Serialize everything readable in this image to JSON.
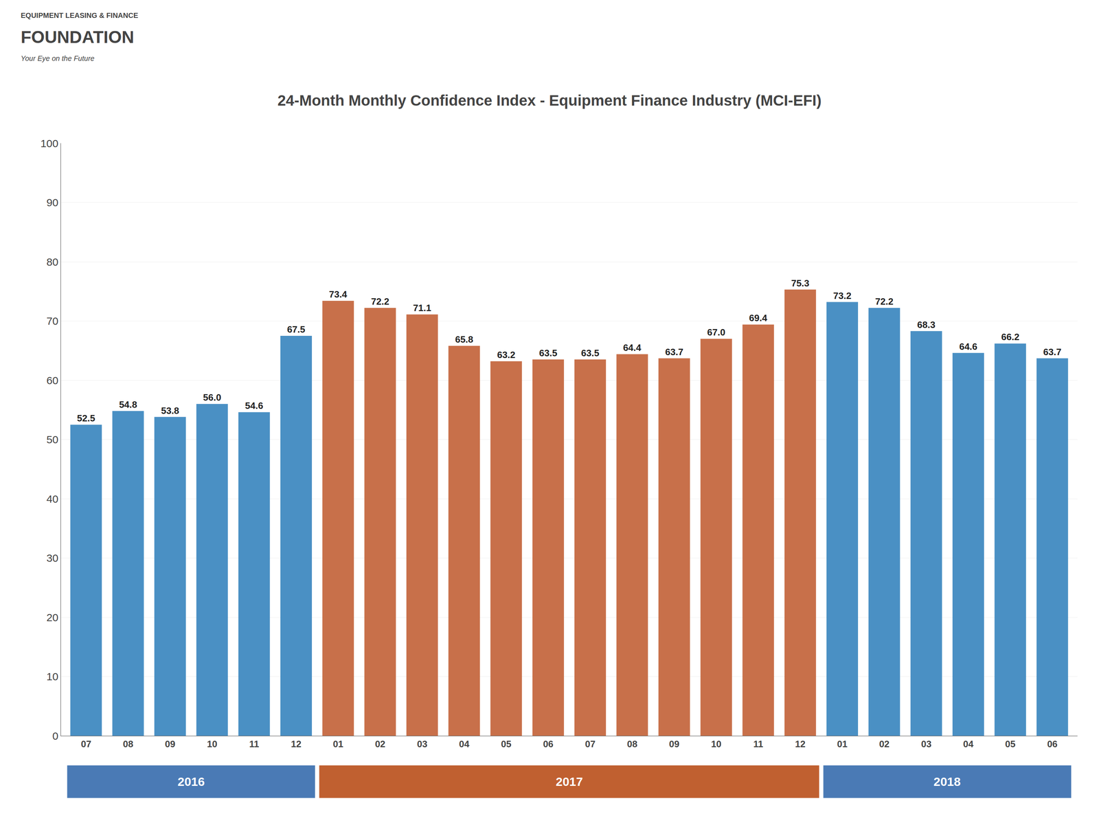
{
  "chart_data": {
    "type": "bar",
    "title": "24-Month Monthly Confidence Index - Equipment Finance Industry (MCI-EFI)",
    "categories": [
      "07",
      "08",
      "09",
      "10",
      "11",
      "12",
      "01",
      "02",
      "03",
      "04",
      "05",
      "06",
      "07",
      "08",
      "09",
      "10",
      "11",
      "12",
      "01",
      "02",
      "03",
      "04",
      "05",
      "06"
    ],
    "values": [
      52.5,
      54.8,
      53.8,
      56.0,
      54.6,
      67.5,
      73.4,
      72.2,
      71.1,
      65.8,
      63.2,
      63.5,
      63.5,
      64.4,
      63.7,
      67.0,
      69.4,
      75.3,
      73.2,
      72.2,
      68.3,
      64.6,
      66.2,
      63.7
    ],
    "value_labels": [
      "52.5",
      "54.8",
      "53.8",
      "56.0",
      "54.6",
      "67.5",
      "73.4",
      "72.2",
      "71.1",
      "65.8",
      "63.2",
      "63.5",
      "63.5",
      "64.4",
      "63.7",
      "67.0",
      "69.4",
      "75.3",
      "73.2",
      "72.2",
      "68.3",
      "64.6",
      "66.2",
      "63.7"
    ],
    "colors": [
      "#4a90c4",
      "#4a90c4",
      "#4a90c4",
      "#4a90c4",
      "#4a90c4",
      "#4a90c4",
      "#c8704a",
      "#c8704a",
      "#c8704a",
      "#c8704a",
      "#c8704a",
      "#c8704a",
      "#c8704a",
      "#c8704a",
      "#c8704a",
      "#c8704a",
      "#c8704a",
      "#c8704a",
      "#4a90c4",
      "#4a90c4",
      "#4a90c4",
      "#4a90c4",
      "#4a90c4",
      "#4a90c4"
    ],
    "data_labels": true,
    "ylim": [
      0,
      100
    ],
    "yticks": [
      0,
      10,
      20,
      30,
      40,
      50,
      60,
      70,
      80,
      90,
      100
    ],
    "grid": true,
    "annotations": [
      {
        "text": "2016",
        "x": [
          0,
          5
        ],
        "color": "#4a7ab5"
      },
      {
        "text": "2017",
        "x": [
          6,
          17
        ],
        "color": "#c06030"
      },
      {
        "text": "2018",
        "x": [
          18,
          23
        ],
        "color": "#4a7ab5"
      },
      {
        "text": "EQUIPMENT LEASING & FINANCE"
      },
      {
        "text": "FOUNDATION"
      },
      {
        "text": "Your Eye on the Future"
      }
    ]
  }
}
